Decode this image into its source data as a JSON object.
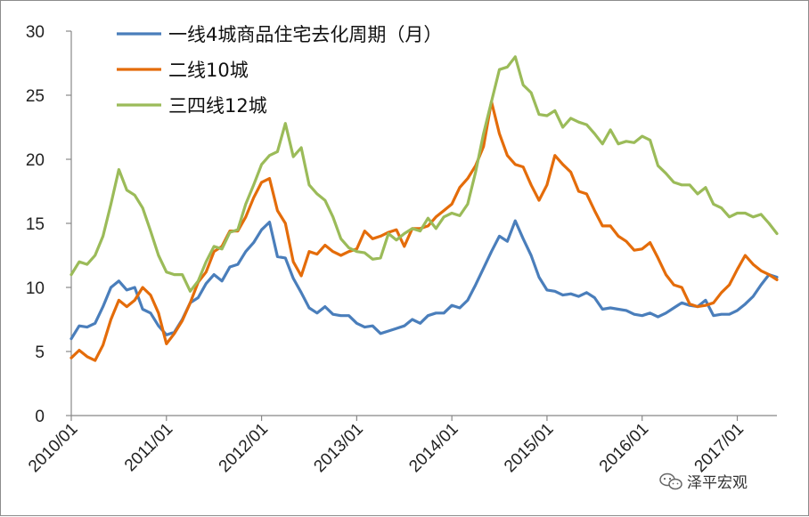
{
  "chart_data": {
    "type": "line",
    "title": "",
    "xlabel": "",
    "ylabel": "",
    "ylim": [
      0,
      30
    ],
    "yticks": [
      "0",
      "5",
      "10",
      "15",
      "20",
      "25",
      "30"
    ],
    "xlim": [
      "2010/01",
      "2017/06"
    ],
    "xticks": [
      "2010/01",
      "2011/01",
      "2012/01",
      "2013/01",
      "2014/01",
      "2015/01",
      "2016/01",
      "2017/01"
    ],
    "grid": false,
    "legend_position": "top-left",
    "series": [
      {
        "name": "一线4城商品住宅去化周期（月）",
        "color": "#4a7ebb",
        "points": [
          [
            "2010/01",
            6.0
          ],
          [
            "2010/02",
            7.0
          ],
          [
            "2010/03",
            6.9
          ],
          [
            "2010/04",
            7.2
          ],
          [
            "2010/05",
            8.5
          ],
          [
            "2010/06",
            10.0
          ],
          [
            "2010/07",
            10.5
          ],
          [
            "2010/08",
            9.8
          ],
          [
            "2010/09",
            10.0
          ],
          [
            "2010/10",
            8.3
          ],
          [
            "2010/11",
            8.0
          ],
          [
            "2010/12",
            7.0
          ],
          [
            "2011/01",
            6.3
          ],
          [
            "2011/02",
            6.5
          ],
          [
            "2011/03",
            7.5
          ],
          [
            "2011/04",
            8.8
          ],
          [
            "2011/05",
            9.2
          ],
          [
            "2011/06",
            10.3
          ],
          [
            "2011/07",
            11.0
          ],
          [
            "2011/08",
            10.5
          ],
          [
            "2011/09",
            11.6
          ],
          [
            "2011/10",
            11.8
          ],
          [
            "2011/11",
            12.8
          ],
          [
            "2011/12",
            13.5
          ],
          [
            "2012/01",
            14.5
          ],
          [
            "2012/02",
            15.1
          ],
          [
            "2012/03",
            12.4
          ],
          [
            "2012/04",
            12.3
          ],
          [
            "2012/05",
            10.7
          ],
          [
            "2012/06",
            9.6
          ],
          [
            "2012/07",
            8.4
          ],
          [
            "2012/08",
            8.0
          ],
          [
            "2012/09",
            8.5
          ],
          [
            "2012/10",
            7.9
          ],
          [
            "2012/11",
            7.8
          ],
          [
            "2012/12",
            7.8
          ],
          [
            "2013/01",
            7.2
          ],
          [
            "2013/02",
            6.9
          ],
          [
            "2013/03",
            7.0
          ],
          [
            "2013/04",
            6.4
          ],
          [
            "2013/05",
            6.6
          ],
          [
            "2013/06",
            6.8
          ],
          [
            "2013/07",
            7.0
          ],
          [
            "2013/08",
            7.5
          ],
          [
            "2013/09",
            7.2
          ],
          [
            "2013/10",
            7.8
          ],
          [
            "2013/11",
            8.0
          ],
          [
            "2013/12",
            8.0
          ],
          [
            "2014/01",
            8.6
          ],
          [
            "2014/02",
            8.4
          ],
          [
            "2014/03",
            9.0
          ],
          [
            "2014/04",
            10.2
          ],
          [
            "2014/05",
            11.5
          ],
          [
            "2014/06",
            12.8
          ],
          [
            "2014/07",
            14.0
          ],
          [
            "2014/08",
            13.6
          ],
          [
            "2014/09",
            15.2
          ],
          [
            "2014/10",
            13.8
          ],
          [
            "2014/11",
            12.5
          ],
          [
            "2014/12",
            10.8
          ],
          [
            "2015/01",
            9.8
          ],
          [
            "2015/02",
            9.7
          ],
          [
            "2015/03",
            9.4
          ],
          [
            "2015/04",
            9.5
          ],
          [
            "2015/05",
            9.3
          ],
          [
            "2015/06",
            9.6
          ],
          [
            "2015/07",
            9.2
          ],
          [
            "2015/08",
            8.3
          ],
          [
            "2015/09",
            8.4
          ],
          [
            "2015/10",
            8.3
          ],
          [
            "2015/11",
            8.2
          ],
          [
            "2015/12",
            7.9
          ],
          [
            "2016/01",
            7.8
          ],
          [
            "2016/02",
            8.0
          ],
          [
            "2016/03",
            7.7
          ],
          [
            "2016/04",
            8.0
          ],
          [
            "2016/05",
            8.4
          ],
          [
            "2016/06",
            8.8
          ],
          [
            "2016/07",
            8.6
          ],
          [
            "2016/08",
            8.5
          ],
          [
            "2016/09",
            9.0
          ],
          [
            "2016/10",
            7.8
          ],
          [
            "2016/11",
            7.9
          ],
          [
            "2016/12",
            7.9
          ],
          [
            "2017/01",
            8.2
          ],
          [
            "2017/02",
            8.7
          ],
          [
            "2017/03",
            9.3
          ],
          [
            "2017/04",
            10.2
          ],
          [
            "2017/05",
            11.0
          ],
          [
            "2017/06",
            10.8
          ]
        ]
      },
      {
        "name": "二线10城",
        "color": "#e46c0a",
        "points": [
          [
            "2010/01",
            4.5
          ],
          [
            "2010/02",
            5.1
          ],
          [
            "2010/03",
            4.6
          ],
          [
            "2010/04",
            4.3
          ],
          [
            "2010/05",
            5.5
          ],
          [
            "2010/06",
            7.5
          ],
          [
            "2010/07",
            9.0
          ],
          [
            "2010/08",
            8.5
          ],
          [
            "2010/09",
            9.0
          ],
          [
            "2010/10",
            10.0
          ],
          [
            "2010/11",
            9.4
          ],
          [
            "2010/12",
            8.0
          ],
          [
            "2011/01",
            5.6
          ],
          [
            "2011/02",
            6.4
          ],
          [
            "2011/03",
            7.4
          ],
          [
            "2011/04",
            8.8
          ],
          [
            "2011/05",
            10.4
          ],
          [
            "2011/06",
            11.2
          ],
          [
            "2011/07",
            12.8
          ],
          [
            "2011/08",
            13.2
          ],
          [
            "2011/09",
            14.4
          ],
          [
            "2011/10",
            14.4
          ],
          [
            "2011/11",
            15.5
          ],
          [
            "2011/12",
            17.0
          ],
          [
            "2012/01",
            18.2
          ],
          [
            "2012/02",
            18.5
          ],
          [
            "2012/03",
            16.0
          ],
          [
            "2012/04",
            15.0
          ],
          [
            "2012/05",
            12.0
          ],
          [
            "2012/06",
            10.9
          ],
          [
            "2012/07",
            12.8
          ],
          [
            "2012/08",
            12.6
          ],
          [
            "2012/09",
            13.3
          ],
          [
            "2012/10",
            12.8
          ],
          [
            "2012/11",
            12.5
          ],
          [
            "2012/12",
            12.8
          ],
          [
            "2013/01",
            13.0
          ],
          [
            "2013/02",
            14.4
          ],
          [
            "2013/03",
            13.8
          ],
          [
            "2013/04",
            14.0
          ],
          [
            "2013/05",
            14.3
          ],
          [
            "2013/06",
            14.5
          ],
          [
            "2013/07",
            13.2
          ],
          [
            "2013/08",
            14.6
          ],
          [
            "2013/09",
            14.6
          ],
          [
            "2013/10",
            14.8
          ],
          [
            "2013/11",
            15.5
          ],
          [
            "2013/12",
            16.0
          ],
          [
            "2014/01",
            16.5
          ],
          [
            "2014/02",
            17.8
          ],
          [
            "2014/03",
            18.5
          ],
          [
            "2014/04",
            19.5
          ],
          [
            "2014/05",
            21.0
          ],
          [
            "2014/06",
            24.5
          ],
          [
            "2014/07",
            22.0
          ],
          [
            "2014/08",
            20.3
          ],
          [
            "2014/09",
            19.6
          ],
          [
            "2014/10",
            19.4
          ],
          [
            "2014/11",
            18.0
          ],
          [
            "2014/12",
            16.8
          ],
          [
            "2015/01",
            18.0
          ],
          [
            "2015/02",
            20.3
          ],
          [
            "2015/03",
            19.6
          ],
          [
            "2015/04",
            19.0
          ],
          [
            "2015/05",
            17.5
          ],
          [
            "2015/06",
            17.3
          ],
          [
            "2015/07",
            16.0
          ],
          [
            "2015/08",
            14.8
          ],
          [
            "2015/09",
            14.8
          ],
          [
            "2015/10",
            14.0
          ],
          [
            "2015/11",
            13.6
          ],
          [
            "2015/12",
            12.9
          ],
          [
            "2016/01",
            13.0
          ],
          [
            "2016/02",
            13.5
          ],
          [
            "2016/03",
            12.3
          ],
          [
            "2016/04",
            11.0
          ],
          [
            "2016/05",
            10.2
          ],
          [
            "2016/06",
            10.0
          ],
          [
            "2016/07",
            8.7
          ],
          [
            "2016/08",
            8.5
          ],
          [
            "2016/09",
            8.6
          ],
          [
            "2016/10",
            8.8
          ],
          [
            "2016/11",
            9.6
          ],
          [
            "2016/12",
            10.2
          ],
          [
            "2017/01",
            11.4
          ],
          [
            "2017/02",
            12.5
          ],
          [
            "2017/03",
            11.8
          ],
          [
            "2017/04",
            11.3
          ],
          [
            "2017/05",
            11.0
          ],
          [
            "2017/06",
            10.6
          ]
        ]
      },
      {
        "name": "三四线12城",
        "color": "#9bbb59",
        "points": [
          [
            "2010/01",
            11.0
          ],
          [
            "2010/02",
            12.0
          ],
          [
            "2010/03",
            11.8
          ],
          [
            "2010/04",
            12.5
          ],
          [
            "2010/05",
            14.0
          ],
          [
            "2010/06",
            16.5
          ],
          [
            "2010/07",
            19.2
          ],
          [
            "2010/08",
            17.6
          ],
          [
            "2010/09",
            17.2
          ],
          [
            "2010/10",
            16.2
          ],
          [
            "2010/11",
            14.4
          ],
          [
            "2010/12",
            12.5
          ],
          [
            "2011/01",
            11.2
          ],
          [
            "2011/02",
            11.0
          ],
          [
            "2011/03",
            11.0
          ],
          [
            "2011/04",
            9.7
          ],
          [
            "2011/05",
            10.5
          ],
          [
            "2011/06",
            12.0
          ],
          [
            "2011/07",
            13.2
          ],
          [
            "2011/08",
            13.0
          ],
          [
            "2011/09",
            14.3
          ],
          [
            "2011/10",
            14.5
          ],
          [
            "2011/11",
            16.5
          ],
          [
            "2011/12",
            18.0
          ],
          [
            "2012/01",
            19.6
          ],
          [
            "2012/02",
            20.3
          ],
          [
            "2012/03",
            20.6
          ],
          [
            "2012/04",
            22.8
          ],
          [
            "2012/05",
            20.2
          ],
          [
            "2012/06",
            20.9
          ],
          [
            "2012/07",
            18.0
          ],
          [
            "2012/08",
            17.3
          ],
          [
            "2012/09",
            16.8
          ],
          [
            "2012/10",
            15.5
          ],
          [
            "2012/11",
            13.8
          ],
          [
            "2012/12",
            13.1
          ],
          [
            "2013/01",
            12.8
          ],
          [
            "2013/02",
            12.7
          ],
          [
            "2013/03",
            12.2
          ],
          [
            "2013/04",
            12.3
          ],
          [
            "2013/05",
            14.2
          ],
          [
            "2013/06",
            13.7
          ],
          [
            "2013/07",
            14.2
          ],
          [
            "2013/08",
            14.6
          ],
          [
            "2013/09",
            14.4
          ],
          [
            "2013/10",
            15.4
          ],
          [
            "2013/11",
            14.6
          ],
          [
            "2013/12",
            15.5
          ],
          [
            "2014/01",
            15.8
          ],
          [
            "2014/02",
            15.6
          ],
          [
            "2014/03",
            16.5
          ],
          [
            "2014/04",
            19.0
          ],
          [
            "2014/05",
            22.0
          ],
          [
            "2014/06",
            24.5
          ],
          [
            "2014/07",
            27.0
          ],
          [
            "2014/08",
            27.2
          ],
          [
            "2014/09",
            28.0
          ],
          [
            "2014/10",
            25.8
          ],
          [
            "2014/11",
            25.2
          ],
          [
            "2014/12",
            23.5
          ],
          [
            "2015/01",
            23.4
          ],
          [
            "2015/02",
            23.8
          ],
          [
            "2015/03",
            22.5
          ],
          [
            "2015/04",
            23.2
          ],
          [
            "2015/05",
            22.9
          ],
          [
            "2015/06",
            22.7
          ],
          [
            "2015/07",
            22.0
          ],
          [
            "2015/08",
            21.2
          ],
          [
            "2015/09",
            22.3
          ],
          [
            "2015/10",
            21.2
          ],
          [
            "2015/11",
            21.4
          ],
          [
            "2015/12",
            21.3
          ],
          [
            "2016/01",
            21.8
          ],
          [
            "2016/02",
            21.5
          ],
          [
            "2016/03",
            19.5
          ],
          [
            "2016/04",
            18.9
          ],
          [
            "2016/05",
            18.2
          ],
          [
            "2016/06",
            18.0
          ],
          [
            "2016/07",
            18.0
          ],
          [
            "2016/08",
            17.3
          ],
          [
            "2016/09",
            17.8
          ],
          [
            "2016/10",
            16.5
          ],
          [
            "2016/11",
            16.2
          ],
          [
            "2016/12",
            15.5
          ],
          [
            "2017/01",
            15.8
          ],
          [
            "2017/02",
            15.8
          ],
          [
            "2017/03",
            15.5
          ],
          [
            "2017/04",
            15.7
          ],
          [
            "2017/05",
            15.0
          ],
          [
            "2017/06",
            14.2
          ]
        ]
      }
    ]
  },
  "watermark": {
    "text": "泽平宏观",
    "icon": "wechat-icon"
  }
}
